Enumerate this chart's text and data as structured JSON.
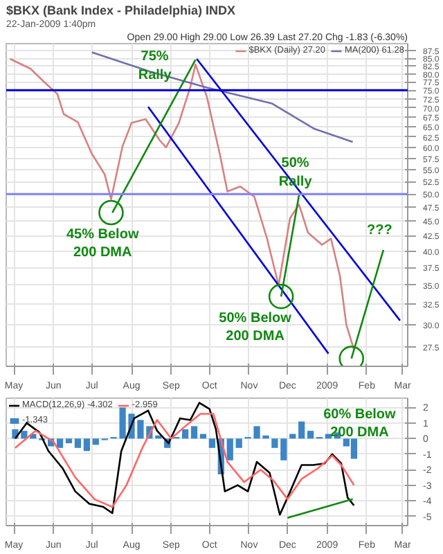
{
  "chart_data": [
    {
      "type": "line",
      "title": "$BKX (Bank Index - Philadelphia) INDX",
      "subtitle": "22-Jan-2009 1:40pm",
      "log": true,
      "grid": true,
      "legend": "top right",
      "annotations": [
        "Open 29.00 High 29.00 Low 26.39 Last 27.20 Chg -1.83 (-6.30%)",
        "75%\nRally",
        "50%\nRally",
        "45% Below\n200 DMA",
        "50% Below\n200 DMA",
        "???"
      ],
      "xlim": [
        "2008-04-25",
        "2009-03-05"
      ],
      "ylim": [
        25.5,
        90
      ],
      "xticks": [
        {
          "value": "2008-05-01",
          "label": "May"
        },
        {
          "value": "2008-06-01",
          "label": "Jun"
        },
        {
          "value": "2008-07-01",
          "label": "Jul"
        },
        {
          "value": "2008-08-01",
          "label": "Aug"
        },
        {
          "value": "2008-09-01",
          "label": "Sep"
        },
        {
          "value": "2008-10-01",
          "label": "Oct"
        },
        {
          "value": "2008-11-01",
          "label": "Nov"
        },
        {
          "value": "2008-12-01",
          "label": "Dec"
        },
        {
          "value": "2009-01-01",
          "label": "2009"
        },
        {
          "value": "2009-02-01",
          "label": "Feb"
        },
        {
          "value": "2009-03-01",
          "label": "Mar"
        }
      ],
      "yticks": [
        27.5,
        {
          "value": 30,
          "label": "30.0"
        },
        32.5,
        {
          "value": 35,
          "label": "35.0"
        },
        37.5,
        {
          "value": 40,
          "label": "40.0"
        },
        42.5,
        {
          "value": 45,
          "label": "45.0"
        },
        47.5,
        {
          "value": 50,
          "label": "50.0"
        },
        52.5,
        {
          "value": 55,
          "label": "55.0"
        },
        57.5,
        {
          "value": 60,
          "label": "60.0"
        },
        62.5,
        {
          "value": 65,
          "label": "65.0"
        },
        67.5,
        {
          "value": 70,
          "label": "70.0"
        },
        72.5,
        {
          "value": 75,
          "label": "75.0"
        },
        77.5,
        {
          "value": 80,
          "label": "80.0"
        },
        82.5,
        {
          "value": 85,
          "label": "85.0"
        },
        87.5
      ],
      "ref_lines": [
        {
          "axis": "y",
          "value": 75,
          "color": "#0000cc"
        },
        {
          "axis": "y",
          "value": 50,
          "color": "#8080ff"
        }
      ],
      "series": [
        {
          "name": "$BKX (Daily) 27.20",
          "color": "#d98080",
          "x": [
            "2008-04-28",
            "2008-05-14",
            "2008-05-24",
            "2008-06-04",
            "2008-06-09",
            "2008-06-20",
            "2008-07-01",
            "2008-07-11",
            "2008-07-16",
            "2008-07-25",
            "2008-08-01",
            "2008-08-12",
            "2008-08-23",
            "2008-08-28",
            "2008-09-07",
            "2008-09-16",
            "2008-09-20",
            "2008-09-29",
            "2008-10-09",
            "2008-10-15",
            "2008-10-25",
            "2008-11-05",
            "2008-11-15",
            "2008-11-24",
            "2008-12-03",
            "2008-12-10",
            "2008-12-17",
            "2008-12-28",
            "2009-01-04",
            "2009-01-11",
            "2009-01-16",
            "2009-01-22"
          ],
          "values": [
            84.8,
            81.6,
            77.7,
            73.9,
            68.3,
            66.2,
            58.5,
            54,
            49,
            60.3,
            66,
            67,
            61.7,
            60,
            66,
            76,
            83,
            73,
            58.5,
            50.5,
            51.5,
            49.5,
            42,
            35,
            45.5,
            48,
            43,
            41,
            42,
            36.3,
            30,
            27.2
          ]
        },
        {
          "name": "MA(200) 61.28",
          "color": "#7070b0",
          "x": [
            "2008-07-01",
            "2008-08-17",
            "2008-09-29",
            "2008-11-19",
            "2008-12-22",
            "2009-01-21"
          ],
          "values": [
            87,
            80.5,
            75.8,
            71.2,
            64.5,
            61.3
          ]
        },
        {
          "color": "#0000dd",
          "x": [
            "2008-08-14",
            "2009-01-02"
          ],
          "values": [
            70.3,
            26.8
          ]
        },
        {
          "color": "#0000dd",
          "x": [
            "2008-09-21",
            "2009-02-27"
          ],
          "values": [
            84.8,
            30.5
          ]
        },
        {
          "color": "#118811",
          "x": [
            "2008-07-17",
            "2008-09-20"
          ],
          "values": [
            46.5,
            84.5
          ]
        },
        {
          "color": "#118811",
          "x": [
            "2008-11-26",
            "2008-12-10"
          ],
          "values": [
            33.5,
            49.8
          ]
        },
        {
          "color": "#118811",
          "x": [
            "2009-01-20",
            "2009-02-14"
          ],
          "values": [
            26.3,
            40.2
          ]
        },
        {
          "type": "scatter",
          "marker": "circle",
          "color": "#118811",
          "x": [
            "2008-07-16",
            "2008-11-26",
            "2009-01-20"
          ],
          "values": [
            46.5,
            33.5,
            26.3
          ]
        }
      ]
    },
    {
      "type": "line",
      "grid": true,
      "legend": "top left",
      "annotations": [
        "60% Below\n200 DMA"
      ],
      "xlim": [
        "2008-04-25",
        "2009-03-05"
      ],
      "ylim": [
        -5.6,
        2.6
      ],
      "xticks": [
        {
          "value": "2008-05-01",
          "label": "May"
        },
        {
          "value": "2008-06-01",
          "label": "Jun"
        },
        {
          "value": "2008-07-01",
          "label": "Jul"
        },
        {
          "value": "2008-08-01",
          "label": "Aug"
        },
        {
          "value": "2008-09-01",
          "label": "Sep"
        },
        {
          "value": "2008-10-01",
          "label": "Oct"
        },
        {
          "value": "2008-11-01",
          "label": "Nov"
        },
        {
          "value": "2008-12-01",
          "label": "Dec"
        },
        {
          "value": "2009-01-01",
          "label": "2009"
        },
        {
          "value": "2009-02-01",
          "label": "Feb"
        },
        {
          "value": "2009-03-01",
          "label": "Mar"
        }
      ],
      "yticks": [
        -5,
        -4,
        -3,
        -2,
        -1,
        0,
        1,
        2
      ],
      "series": [
        {
          "type": "bar",
          "name": "-1.343",
          "color": "#3d85c6",
          "x": [
            "2008-05-02",
            "2008-05-09",
            "2008-05-16",
            "2008-05-23",
            "2008-05-30",
            "2008-06-06",
            "2008-06-13",
            "2008-06-20",
            "2008-06-27",
            "2008-07-04",
            "2008-07-11",
            "2008-07-18",
            "2008-07-25",
            "2008-08-01",
            "2008-08-08",
            "2008-08-15",
            "2008-08-22",
            "2008-08-29",
            "2008-09-05",
            "2008-09-12",
            "2008-09-19",
            "2008-09-26",
            "2008-10-03",
            "2008-10-10",
            "2008-10-17",
            "2008-10-24",
            "2008-10-31",
            "2008-11-07",
            "2008-11-14",
            "2008-11-21",
            "2008-11-28",
            "2008-12-05",
            "2008-12-12",
            "2008-12-19",
            "2008-12-26",
            "2009-01-02",
            "2009-01-09",
            "2009-01-16",
            "2009-01-22"
          ],
          "values": [
            0.6,
            0.5,
            0.3,
            -0.1,
            -0.5,
            -0.6,
            -0.3,
            -0.6,
            -0.8,
            -0.4,
            -0.1,
            0.1,
            2.0,
            1.6,
            1.2,
            0.8,
            0.2,
            -0.6,
            0.1,
            0.6,
            0.8,
            0.3,
            -0.6,
            -2.3,
            -1.4,
            -0.6,
            0.1,
            0.8,
            0.2,
            -0.6,
            -1.4,
            0.3,
            1.1,
            0.5,
            0.1,
            0.3,
            0.4,
            -0.5,
            -1.3
          ]
        },
        {
          "name": "MACD(12,26,9) -4.302",
          "color": "#000000",
          "x": [
            "2008-05-02",
            "2008-05-11",
            "2008-05-21",
            "2008-05-28",
            "2008-06-08",
            "2008-06-18",
            "2008-06-29",
            "2008-07-10",
            "2008-07-17",
            "2008-07-24",
            "2008-08-03",
            "2008-08-14",
            "2008-08-21",
            "2008-08-30",
            "2008-09-08",
            "2008-09-16",
            "2008-09-23",
            "2008-10-01",
            "2008-10-06",
            "2008-10-13",
            "2008-10-23",
            "2008-10-31",
            "2008-11-07",
            "2008-11-17",
            "2008-11-25",
            "2008-12-01",
            "2008-12-12",
            "2008-12-21",
            "2008-12-30",
            "2009-01-05",
            "2009-01-12",
            "2009-01-17",
            "2009-01-22"
          ],
          "values": [
            0,
            1.0,
            0.4,
            -0.8,
            -1.9,
            -3.4,
            -4.2,
            -4.4,
            -4.8,
            -0.8,
            1.3,
            1.8,
            0.5,
            -0.3,
            1.3,
            1.2,
            2.3,
            1.9,
            0.6,
            -3.4,
            -3.0,
            -3.4,
            -1.5,
            -2.2,
            -4.9,
            -3.8,
            -1.7,
            -1.7,
            -1.6,
            -1.0,
            -1.6,
            -3.8,
            -4.3
          ]
        },
        {
          "name": "-2.959",
          "color": "#ff6666",
          "x": [
            "2008-05-02",
            "2008-05-18",
            "2008-06-01",
            "2008-06-18",
            "2008-07-03",
            "2008-07-17",
            "2008-07-28",
            "2008-08-10",
            "2008-08-21",
            "2008-09-01",
            "2008-09-12",
            "2008-09-24",
            "2008-10-04",
            "2008-10-15",
            "2008-10-28",
            "2008-11-10",
            "2008-11-20",
            "2008-12-01",
            "2008-12-12",
            "2008-12-25",
            "2009-01-05",
            "2009-01-12",
            "2009-01-22"
          ],
          "values": [
            -0.6,
            0.5,
            -0.2,
            -2.5,
            -3.9,
            -4.4,
            -3.0,
            -0.5,
            1.2,
            0.0,
            0.8,
            1.6,
            1.6,
            -1.5,
            -2.8,
            -2.0,
            -2.7,
            -3.9,
            -2.6,
            -1.9,
            -1.1,
            -1.7,
            -3.0
          ]
        },
        {
          "color": "#118811",
          "x": [
            "2008-12-01",
            "2009-01-21"
          ],
          "values": [
            -5.1,
            -3.9
          ]
        }
      ]
    }
  ]
}
